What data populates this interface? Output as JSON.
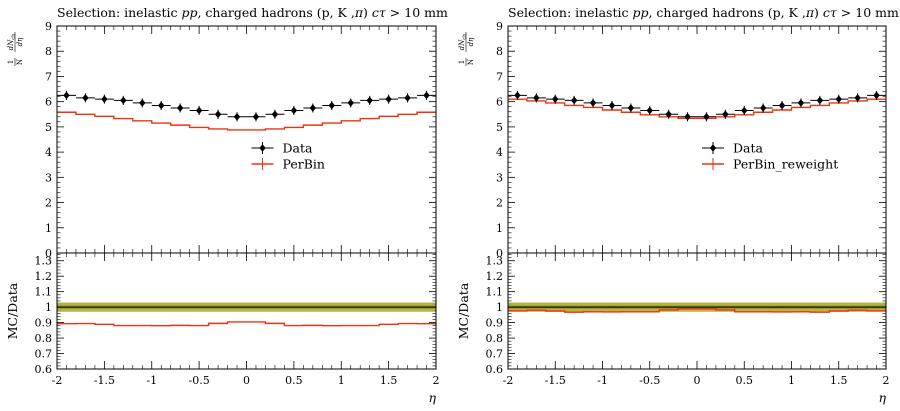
{
  "colors": {
    "data": "#000000",
    "mc": "#ee3311",
    "band": "#a8a82a",
    "band_inner": "#8a8a20"
  },
  "chart_data": [
    {
      "type": "line",
      "title_prefix": "Selection: inelastic ",
      "title_pp": "pp",
      "title_middle": ", charged hadrons (p, K ,",
      "title_pi": "π",
      "title_paren": ") ",
      "title_ctau": "cτ",
      "title_suffix": " > 10 mm",
      "ylabel": "1/N dN_ch/dη",
      "ylabel_parts": {
        "one": "1",
        "N": "N",
        "dN": "dN",
        "ch": "ch",
        "deta": "dη"
      },
      "ratio_ylabel": "MC/Data",
      "xlabel": "η",
      "xlim": [
        -2,
        2
      ],
      "ylim": [
        0,
        9
      ],
      "ratio_ylim": [
        0.6,
        1.35
      ],
      "x_ticks": [
        "-2",
        "-1.5",
        "-1",
        "-0.5",
        "0",
        "0.5",
        "1",
        "1.5",
        "2"
      ],
      "y_ticks": [
        "0",
        "1",
        "2",
        "3",
        "4",
        "5",
        "6",
        "7",
        "8",
        "9"
      ],
      "ratio_ticks": [
        "0.6",
        "0.7",
        "0.8",
        "0.9",
        "1",
        "1.1",
        "1.2",
        "1.3"
      ],
      "legend": {
        "data": "Data",
        "mc": "PerBin"
      },
      "bin_edges": [
        -2,
        -1.8,
        -1.6,
        -1.4,
        -1.2,
        -1.0,
        -0.8,
        -0.6,
        -0.4,
        -0.2,
        0,
        0.2,
        0.4,
        0.6,
        0.8,
        1.0,
        1.2,
        1.4,
        1.6,
        1.8,
        2.0
      ],
      "series": [
        {
          "name": "Data",
          "values": [
            6.25,
            6.15,
            6.1,
            6.05,
            5.95,
            5.85,
            5.75,
            5.65,
            5.5,
            5.4,
            5.4,
            5.5,
            5.65,
            5.75,
            5.85,
            5.95,
            6.05,
            6.1,
            6.15,
            6.25
          ],
          "yerr": 0.18
        },
        {
          "name": "PerBin",
          "values": [
            5.58,
            5.5,
            5.42,
            5.33,
            5.24,
            5.15,
            5.07,
            4.98,
            4.92,
            4.88,
            4.88,
            4.92,
            4.98,
            5.07,
            5.15,
            5.24,
            5.33,
            5.42,
            5.5,
            5.58
          ]
        }
      ],
      "ratio_values": [
        0.893,
        0.894,
        0.889,
        0.881,
        0.881,
        0.88,
        0.882,
        0.881,
        0.895,
        0.904,
        0.904,
        0.895,
        0.881,
        0.882,
        0.88,
        0.881,
        0.881,
        0.889,
        0.894,
        0.893
      ],
      "band": [
        0.97,
        1.03
      ],
      "band_inner": [
        0.99,
        1.01
      ]
    },
    {
      "type": "line",
      "title_prefix": "Selection: inelastic ",
      "title_pp": "pp",
      "title_middle": ", charged hadrons (p, K ,",
      "title_pi": "π",
      "title_paren": ") ",
      "title_ctau": "cτ",
      "title_suffix": " > 10 mm",
      "ylabel": "1/N dN_ch/dη",
      "ylabel_parts": {
        "one": "1",
        "N": "N",
        "dN": "dN",
        "ch": "ch",
        "deta": "dη"
      },
      "ratio_ylabel": "MC/Data",
      "xlabel": "η",
      "xlim": [
        -2,
        2
      ],
      "ylim": [
        0,
        9
      ],
      "ratio_ylim": [
        0.6,
        1.35
      ],
      "x_ticks": [
        "-2",
        "-1.5",
        "-1",
        "-0.5",
        "0",
        "0.5",
        "1",
        "1.5",
        "2"
      ],
      "y_ticks": [
        "0",
        "1",
        "2",
        "3",
        "4",
        "5",
        "6",
        "7",
        "8",
        "9"
      ],
      "ratio_ticks": [
        "0.6",
        "0.7",
        "0.8",
        "0.9",
        "1",
        "1.1",
        "1.2",
        "1.3"
      ],
      "legend": {
        "data": "Data",
        "mc": "PerBin_reweight"
      },
      "bin_edges": [
        -2,
        -1.8,
        -1.6,
        -1.4,
        -1.2,
        -1.0,
        -0.8,
        -0.6,
        -0.4,
        -0.2,
        0,
        0.2,
        0.4,
        0.6,
        0.8,
        1.0,
        1.2,
        1.4,
        1.6,
        1.8,
        2.0
      ],
      "series": [
        {
          "name": "Data",
          "values": [
            6.25,
            6.15,
            6.1,
            6.05,
            5.95,
            5.85,
            5.75,
            5.65,
            5.5,
            5.4,
            5.4,
            5.5,
            5.65,
            5.75,
            5.85,
            5.95,
            6.05,
            6.1,
            6.15,
            6.25
          ],
          "yerr": 0.18
        },
        {
          "name": "PerBin_reweight",
          "values": [
            6.1,
            6.03,
            5.95,
            5.85,
            5.77,
            5.67,
            5.58,
            5.48,
            5.4,
            5.34,
            5.34,
            5.4,
            5.48,
            5.58,
            5.67,
            5.77,
            5.85,
            5.95,
            6.03,
            6.1
          ]
        }
      ],
      "ratio_values": [
        0.976,
        0.98,
        0.975,
        0.967,
        0.97,
        0.969,
        0.97,
        0.97,
        0.982,
        0.989,
        0.989,
        0.982,
        0.97,
        0.97,
        0.969,
        0.97,
        0.967,
        0.975,
        0.98,
        0.976
      ],
      "band": [
        0.97,
        1.03
      ],
      "band_inner": [
        0.99,
        1.01
      ]
    }
  ]
}
